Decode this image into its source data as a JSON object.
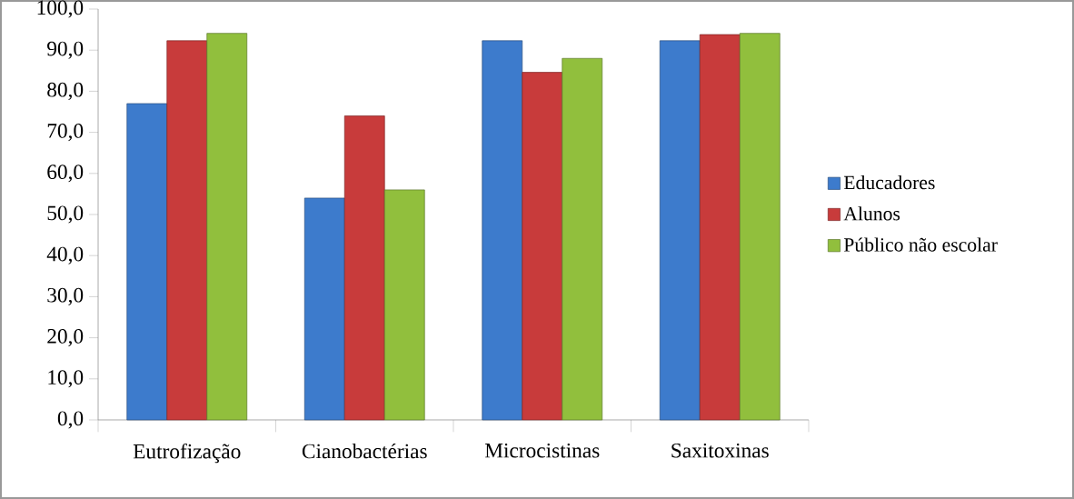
{
  "chart_data": {
    "type": "bar",
    "categories": [
      "Eutrofização",
      "Cianobactérias",
      "Microcistinas",
      "Saxitoxinas"
    ],
    "series": [
      {
        "name": "Educadores",
        "color": "#3d7bcc",
        "values": [
          77,
          54,
          92.3,
          92.3
        ]
      },
      {
        "name": "Alunos",
        "color": "#c83b3b",
        "values": [
          92.3,
          74,
          84.6,
          93.8
        ]
      },
      {
        "name": "Público não escolar",
        "color": "#91bf3d",
        "values": [
          94.1,
          56,
          88,
          94.1
        ]
      }
    ],
    "ylim": [
      0,
      100
    ],
    "yticks": [
      {
        "value": 0,
        "label": "0,0"
      },
      {
        "value": 10,
        "label": "10,0"
      },
      {
        "value": 20,
        "label": "20,0"
      },
      {
        "value": 30,
        "label": "30,0"
      },
      {
        "value": 40,
        "label": "40,0"
      },
      {
        "value": 50,
        "label": "50,0"
      },
      {
        "value": 60,
        "label": "60,0"
      },
      {
        "value": 70,
        "label": "70,0"
      },
      {
        "value": 80,
        "label": "80,0"
      },
      {
        "value": 90,
        "label": "90,0"
      },
      {
        "value": 100,
        "label": "100,0"
      }
    ],
    "grid": false,
    "legend": "right"
  }
}
